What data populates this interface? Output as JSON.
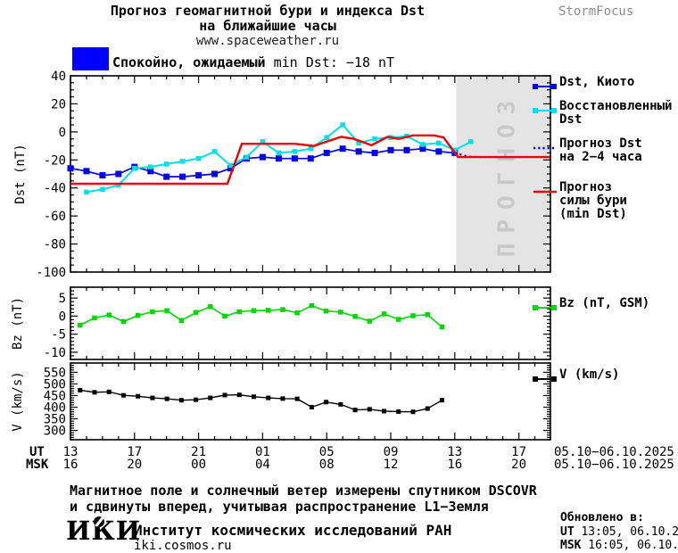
{
  "header": {
    "title_line1": "Прогноз геомагнитной бури и индекса Dst",
    "title_line2": "на ближайшие часы",
    "title_url": "www.spaceweather.ru",
    "brand": "StormFocus",
    "status_bold": "Спокойно, ожидаемый",
    "status_rest": " min Dst: −18 nT",
    "status_color": "#0000ff"
  },
  "chart_data": {
    "type": "line",
    "title": "Прогноз геомагнитной бури и индекса Dst на ближайшие часы",
    "x_axis": {
      "ut_label": "UT",
      "msk_label": "MSK",
      "ut_ticks": [
        "13",
        "17",
        "21",
        "01",
        "05",
        "09",
        "13",
        "17"
      ],
      "msk_ticks": [
        "16",
        "20",
        "00",
        "04",
        "08",
        "12",
        "16",
        "20"
      ],
      "date_range_ut": "05.10−06.10.2025",
      "date_range_msk": "05.10−06.10.2025",
      "hours_span": 28,
      "minor_step_hours": 1
    },
    "panels": [
      {
        "name": "dst",
        "ylabel": "Dst (nT)",
        "ylim": [
          -100,
          40
        ],
        "yticks": [
          40,
          20,
          0,
          -20,
          -40,
          -60,
          -80,
          -100
        ],
        "yminor": 5,
        "forecast_zone": {
          "start_h": 24.1,
          "label": "ПРОГНОЗ",
          "bg": "#e4e4e4",
          "fg": "#c9c9c9"
        },
        "series": [
          {
            "name": "Dst, Киото",
            "color": "#0000e8",
            "width": 1.7,
            "marker": "square",
            "marker_size": 7,
            "start_h": 0,
            "step_h": 1,
            "values": [
              -26,
              -28,
              -31,
              -30,
              -25,
              -28,
              -32,
              -32,
              -31,
              -30,
              -26,
              -19,
              -18,
              -19,
              -19,
              -19,
              -15,
              -12,
              -14,
              -15,
              -13,
              -13,
              -12,
              -14,
              -15
            ]
          },
          {
            "name": "Восстановленный Dst",
            "color": "#00e0ea",
            "width": 2,
            "marker": "square",
            "marker_size": 5.5,
            "start_h": 1,
            "step_h": 1,
            "values": [
              -43,
              -41,
              -38,
              -26,
              -25,
              -23,
              -21,
              -19,
              -14,
              -24,
              -18,
              -7,
              -15,
              -14,
              -12,
              -4,
              5,
              -8,
              -5,
              -4,
              -3,
              -9,
              -8,
              -13,
              -7
            ]
          },
          {
            "name": "Прогноз Dst на 2−4 часа",
            "color": "#0000e8",
            "width": 2,
            "style": "dotted",
            "points": [
              [
                24,
                -15
              ],
              [
                24.8,
                -17.5
              ],
              [
                25.5,
                -18
              ],
              [
                28.3,
                -18
              ]
            ]
          },
          {
            "name": "Прогноз силы бури (min Dst)",
            "color": "#ee0000",
            "width": 2.4,
            "style": "solid",
            "points": [
              [
                0,
                -37
              ],
              [
                9.8,
                -37
              ],
              [
                10.7,
                -8.5
              ],
              [
                14,
                -8.5
              ],
              [
                15.2,
                -10
              ],
              [
                16.9,
                -3.5
              ],
              [
                17.7,
                -5
              ],
              [
                18.8,
                -9.5
              ],
              [
                19.8,
                -3.5
              ],
              [
                20.5,
                -5
              ],
              [
                21.4,
                -2.5
              ],
              [
                22.7,
                -2.5
              ],
              [
                23.3,
                -4
              ],
              [
                24.2,
                -18
              ],
              [
                30,
                -18
              ]
            ]
          }
        ]
      },
      {
        "name": "bz",
        "ylabel": "Bz (nT)",
        "ylim": [
          -12,
          8
        ],
        "yticks": [
          5,
          0,
          -5,
          -10
        ],
        "yminor": 1,
        "series": [
          {
            "name": "Bz (nT, GSM)",
            "color": "#00d800",
            "width": 1.6,
            "marker": "square",
            "marker_size": 5.5,
            "start_h": 0.6,
            "step_h": 0.904,
            "values": [
              -2.5,
              -0.5,
              0.3,
              -1.5,
              0.2,
              1.2,
              1.5,
              -1.2,
              1,
              2.6,
              0,
              1.2,
              1.5,
              1.6,
              1.8,
              0.9,
              2.9,
              1.4,
              1.1,
              -0.1,
              -1.4,
              0.6,
              -0.9,
              0.1,
              0.4,
              -3
            ]
          }
        ]
      },
      {
        "name": "v",
        "ylabel": "V (km/s)",
        "ylim": [
          260,
          590
        ],
        "yticks": [
          550,
          500,
          450,
          400,
          350,
          300
        ],
        "yminor": 10,
        "series": [
          {
            "name": "V (km/s)",
            "color": "#000000",
            "width": 1.4,
            "marker": "square",
            "marker_size": 5,
            "start_h": 0.6,
            "step_h": 0.904,
            "values": [
              473,
              464,
              466,
              451,
              447,
              440,
              436,
              430,
              432,
              440,
              452,
              453,
              445,
              440,
              437,
              436,
              400,
              422,
              412,
              388,
              391,
              383,
              381,
              380,
              394,
              430
            ]
          }
        ]
      }
    ]
  },
  "legend": {
    "items": [
      {
        "swatch": "line-squares",
        "color": "#0000e8",
        "lines": [
          "Dst, Киото"
        ]
      },
      {
        "swatch": "line-squares",
        "color": "#00e0ea",
        "lines": [
          "Восстановленный",
          "Dst"
        ]
      },
      {
        "swatch": "dotted",
        "color": "#0000e8",
        "lines": [
          "Прогноз Dst",
          "на 2−4 часа"
        ]
      },
      {
        "swatch": "line",
        "color": "#ee0000",
        "lines": [
          "Прогноз",
          "силы бури",
          "(min Dst)"
        ]
      },
      {
        "swatch": "line-squares",
        "color": "#00d800",
        "lines": [
          "Bz (nT, GSM)"
        ]
      },
      {
        "swatch": "line-squares",
        "color": "#000000",
        "lines": [
          "V (km/s)"
        ]
      }
    ]
  },
  "footer": {
    "note_line1": "Магнитное поле и солнечный ветер измерены спутником DSCOVR",
    "note_line2": "и сдвинуты вперед, учитывая распространение L1−Земля",
    "logo_text": "ИКИ",
    "institute": "Институт космических исследований РАН",
    "site": "iki.cosmos.ru",
    "updated_label": "Обновлено в:",
    "updated_ut_label": "UT",
    "updated_ut_value": "  13:05, 06.10.2025",
    "updated_msk_label": "MSK",
    "updated_msk_value": " 16:05, 06.10.2025"
  }
}
